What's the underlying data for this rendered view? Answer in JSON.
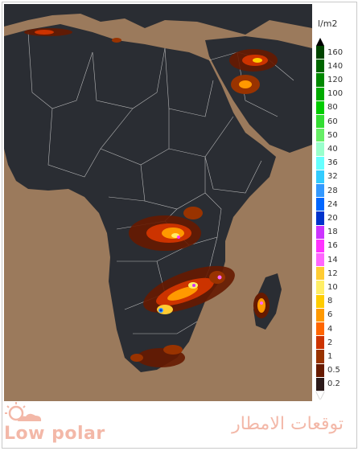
{
  "legend": {
    "unit": "l/m2",
    "ticks": [
      "160",
      "140",
      "120",
      "100",
      "80",
      "60",
      "50",
      "40",
      "36",
      "32",
      "28",
      "24",
      "20",
      "18",
      "16",
      "14",
      "12",
      "10",
      "8",
      "6",
      "4",
      "2",
      "1",
      "0.5",
      "0.2"
    ],
    "colors": [
      "#004400",
      "#006600",
      "#008800",
      "#00aa00",
      "#00cc00",
      "#33dd33",
      "#66ee66",
      "#99ffcc",
      "#66ffff",
      "#33ccff",
      "#3399ff",
      "#0066ff",
      "#0033cc",
      "#cc33ff",
      "#ff33ff",
      "#ff66ff",
      "#ffcc33",
      "#ffee66",
      "#ffcc00",
      "#ff9900",
      "#ff6600",
      "#cc3300",
      "#993300",
      "#661a00",
      "#2b1a1a"
    ]
  },
  "branding": {
    "name": "Low polar",
    "subtitle": "توقعات الامطار"
  },
  "colors": {
    "ocean": "#9b7a5c",
    "land": "#2a2d33",
    "borders": "#cfcfcf"
  }
}
